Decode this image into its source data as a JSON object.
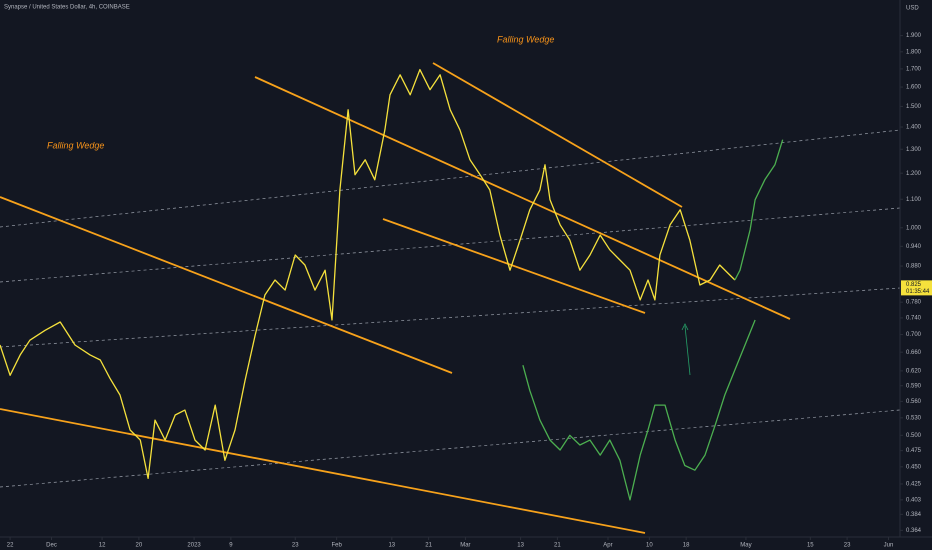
{
  "chart_data": {
    "type": "line",
    "title": "Synapse / United States Dollar, 4h, COINBASE",
    "currency": "USD",
    "annotations": [
      "Falling Wedge",
      "Falling Wedge"
    ],
    "log_scale": true,
    "grid": false,
    "xlim": [
      -2.2,
      193.5
    ],
    "ylim": [
      0.356,
      2.14
    ],
    "xticks": [
      {
        "value": 0,
        "label": "22"
      },
      {
        "value": 9,
        "label": "Dec"
      },
      {
        "value": 20,
        "label": "12"
      },
      {
        "value": 28,
        "label": "20"
      },
      {
        "value": 40,
        "label": "2023"
      },
      {
        "value": 48,
        "label": "9"
      },
      {
        "value": 62,
        "label": "23"
      },
      {
        "value": 71,
        "label": "Feb"
      },
      {
        "value": 83,
        "label": "13"
      },
      {
        "value": 91,
        "label": "21"
      },
      {
        "value": 99,
        "label": "Mar"
      },
      {
        "value": 111,
        "label": "13"
      },
      {
        "value": 119,
        "label": "21"
      },
      {
        "value": 130,
        "label": "Apr"
      },
      {
        "value": 139,
        "label": "10"
      },
      {
        "value": 147,
        "label": "18"
      },
      {
        "value": 160,
        "label": "May"
      },
      {
        "value": 174,
        "label": "15"
      },
      {
        "value": 182,
        "label": "23"
      },
      {
        "value": 191,
        "label": "Jun"
      }
    ],
    "yticks": [
      {
        "value": 1.9,
        "label": "1.900"
      },
      {
        "value": 1.8,
        "label": "1.800"
      },
      {
        "value": 1.7,
        "label": "1.700"
      },
      {
        "value": 1.6,
        "label": "1.600"
      },
      {
        "value": 1.5,
        "label": "1.500"
      },
      {
        "value": 1.4,
        "label": "1.400"
      },
      {
        "value": 1.3,
        "label": "1.300"
      },
      {
        "value": 1.2,
        "label": "1.200"
      },
      {
        "value": 1.1,
        "label": "1.100"
      },
      {
        "value": 1.0,
        "label": "1.000"
      },
      {
        "value": 0.94,
        "label": "0.940"
      },
      {
        "value": 0.88,
        "label": "0.880"
      },
      {
        "value": 0.78,
        "label": "0.780"
      },
      {
        "value": 0.74,
        "label": "0.740"
      },
      {
        "value": 0.7,
        "label": "0.700"
      },
      {
        "value": 0.66,
        "label": "0.660"
      },
      {
        "value": 0.62,
        "label": "0.620"
      },
      {
        "value": 0.59,
        "label": "0.590"
      },
      {
        "value": 0.56,
        "label": "0.560"
      },
      {
        "value": 0.53,
        "label": "0.530"
      },
      {
        "value": 0.5,
        "label": "0.500"
      },
      {
        "value": 0.475,
        "label": "0.475"
      },
      {
        "value": 0.45,
        "label": "0.450"
      },
      {
        "value": 0.425,
        "label": "0.425"
      },
      {
        "value": 0.403,
        "label": "0.403"
      },
      {
        "value": 0.384,
        "label": "0.384"
      },
      {
        "value": 0.364,
        "label": "0.364"
      }
    ],
    "last_price": {
      "value": 0.825,
      "label": "0.825"
    },
    "countdown": "01:35:44",
    "series": [
      {
        "color": "#f5e13c",
        "x": [
          -2.2,
          0,
          2.2,
          4.3,
          7.6,
          10.9,
          14.1,
          17.4,
          19.6,
          21.7,
          23.9,
          26.1,
          28.3,
          30,
          31.5,
          33.7,
          35.9,
          38,
          40.2,
          42.4,
          44.6,
          46.7,
          48.9,
          51.1,
          53.3,
          55.4,
          57.6,
          59.8,
          62,
          64.1,
          66.3,
          68.5,
          70,
          71.7,
          73.5,
          75,
          77.2,
          79.3,
          81.5,
          82.6,
          84.8,
          87,
          89.1,
          91.3,
          93.5,
          95.7,
          97.8,
          100,
          102.2,
          104.3,
          106.5,
          108.7,
          110.9,
          113,
          115.2,
          116.3,
          117.4,
          119.6,
          121.7,
          123.9,
          126.1,
          128.3,
          130.4,
          132.6,
          134.8,
          137,
          138.7,
          140.2,
          141.3,
          143.5,
          145.7,
          147.8,
          150,
          152.2,
          154.3,
          156.5,
          157.6
        ],
        "values": [
          0.676,
          0.611,
          0.654,
          0.687,
          0.71,
          0.73,
          0.676,
          0.654,
          0.643,
          0.605,
          0.572,
          0.509,
          0.492,
          0.433,
          0.526,
          0.492,
          0.535,
          0.544,
          0.492,
          0.476,
          0.553,
          0.46,
          0.509,
          0.601,
          0.699,
          0.799,
          0.84,
          0.812,
          0.913,
          0.883,
          0.812,
          0.868,
          0.735,
          1.135,
          1.483,
          1.194,
          1.255,
          1.174,
          1.387,
          1.559,
          1.667,
          1.559,
          1.696,
          1.586,
          1.667,
          1.483,
          1.387,
          1.255,
          1.194,
          1.135,
          0.976,
          0.868,
          0.96,
          1.062,
          1.135,
          1.234,
          1.098,
          1.01,
          0.96,
          0.868,
          0.913,
          0.976,
          0.929,
          0.898,
          0.868,
          0.786,
          0.84,
          0.786,
          0.913,
          1.01,
          1.062,
          0.96,
          0.826,
          0.84,
          0.883,
          0.854,
          0.84
        ]
      },
      {
        "color": "#4caf50",
        "x": [
          157.6,
          158.7,
          160.9,
          162,
          164.1,
          166.3,
          168
        ],
        "values": [
          0.84,
          0.868,
          0.993,
          1.098,
          1.174,
          1.234,
          1.342
        ]
      },
      {
        "color": "#4caf50",
        "x": [
          111.5,
          113,
          115.2,
          117.4,
          119.6,
          121.7,
          123.9,
          126.1,
          128.3,
          130.4,
          132.6,
          133.7,
          134.8,
          137,
          138.7,
          140.2,
          142.4,
          144.6,
          146.7,
          148.9,
          151.1,
          153.3,
          155.4,
          157.6,
          159.8,
          162
        ],
        "values": [
          0.632,
          0.581,
          0.526,
          0.492,
          0.476,
          0.5,
          0.484,
          0.492,
          0.468,
          0.492,
          0.46,
          0.43,
          0.403,
          0.468,
          0.509,
          0.553,
          0.553,
          0.492,
          0.452,
          0.445,
          0.468,
          0.517,
          0.572,
          0.622,
          0.676,
          0.735
        ]
      }
    ]
  }
}
